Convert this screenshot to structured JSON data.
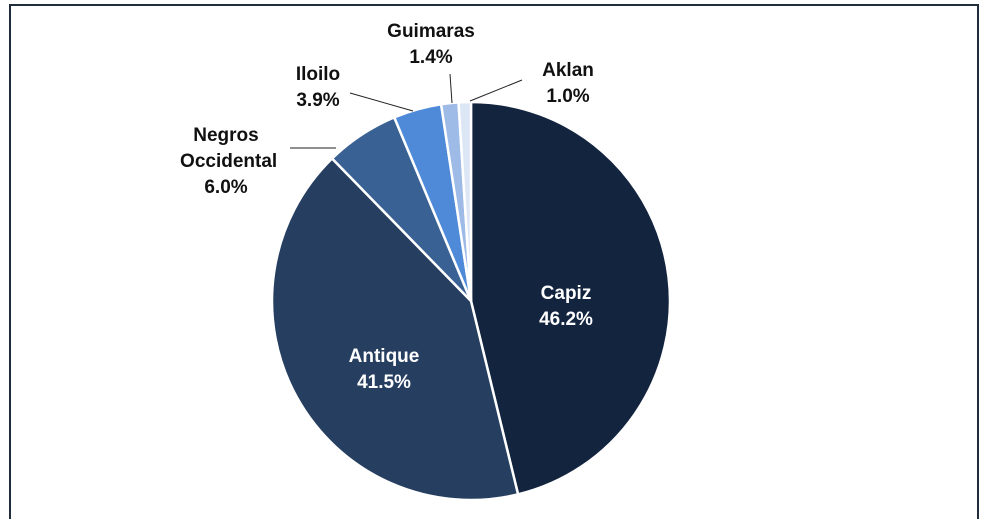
{
  "chart_data": {
    "type": "pie",
    "categories": [
      "Capiz",
      "Antique",
      "Negros Occidental",
      "Iloilo",
      "Guimaras",
      "Aklan"
    ],
    "values": [
      46.2,
      41.5,
      6.0,
      3.9,
      1.4,
      1.0
    ],
    "value_labels": [
      "46.2%",
      "41.5%",
      "6.0%",
      "3.9%",
      "1.4%",
      "1.0%"
    ],
    "colors": [
      "#13243f",
      "#263f61",
      "#3a6193",
      "#4f8ad8",
      "#9dbbe6",
      "#dce6f4"
    ]
  }
}
